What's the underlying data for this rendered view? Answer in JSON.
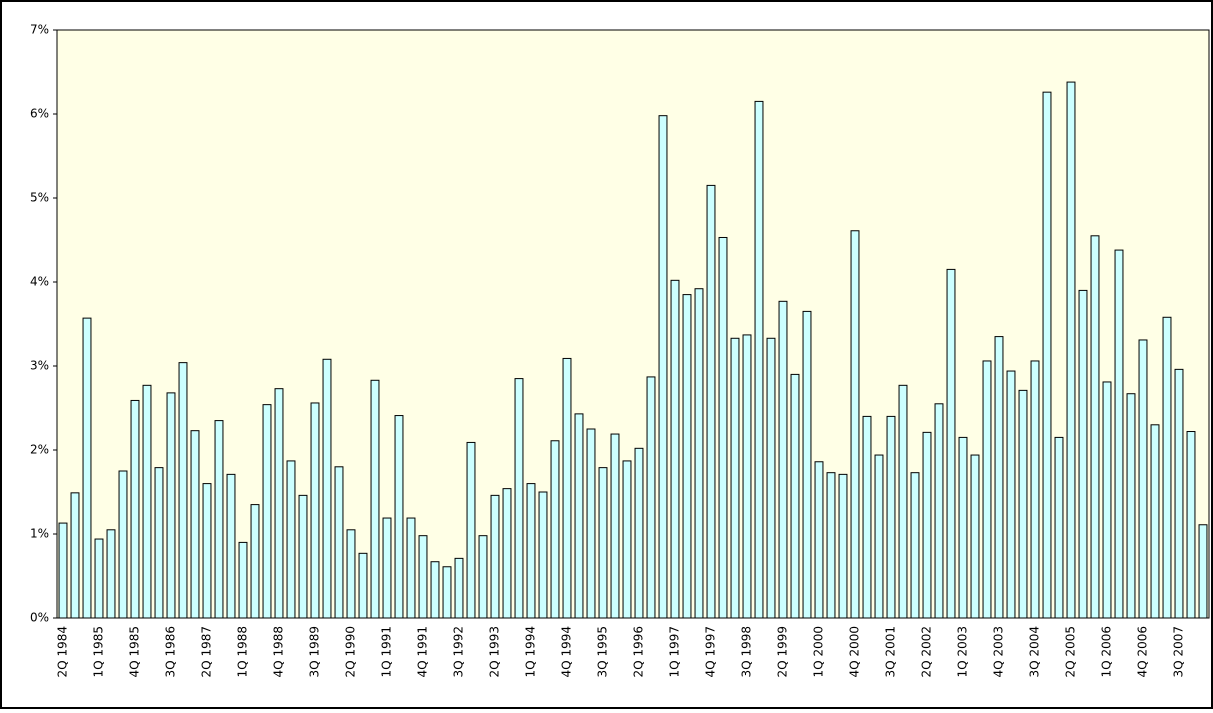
{
  "chart_data": {
    "type": "bar",
    "categories": [
      "2Q 1984",
      null,
      null,
      "1Q 1985",
      null,
      null,
      "4Q 1985",
      null,
      null,
      "3Q 1986",
      null,
      null,
      "2Q 1987",
      null,
      null,
      "1Q 1988",
      null,
      null,
      "4Q 1988",
      null,
      null,
      "3Q 1989",
      null,
      null,
      "2Q 1990",
      null,
      null,
      "1Q 1991",
      null,
      null,
      "4Q 1991",
      null,
      null,
      "3Q 1992",
      null,
      null,
      "2Q 1993",
      null,
      null,
      "1Q 1994",
      null,
      null,
      "4Q 1994",
      null,
      null,
      "3Q 1995",
      null,
      null,
      "2Q 1996",
      null,
      null,
      "1Q 1997",
      null,
      null,
      "4Q 1997",
      null,
      null,
      "3Q 1998",
      null,
      null,
      "2Q 1999",
      null,
      null,
      "1Q 2000",
      null,
      null,
      "4Q 2000",
      null,
      null,
      "3Q 2001",
      null,
      null,
      "2Q 2002",
      null,
      null,
      "1Q 2003",
      null,
      null,
      "4Q 2003",
      null,
      null,
      "3Q 2004",
      null,
      null,
      "2Q 2005",
      null,
      null,
      "1Q 2006",
      null,
      null,
      "4Q 2006",
      null,
      null,
      "3Q 2007",
      null,
      null
    ],
    "values": [
      1.13,
      1.49,
      3.57,
      0.94,
      1.05,
      1.75,
      2.59,
      2.77,
      1.79,
      2.68,
      3.04,
      2.23,
      1.6,
      2.35,
      1.71,
      0.9,
      1.35,
      2.54,
      2.73,
      1.87,
      1.46,
      2.56,
      3.08,
      1.8,
      1.05,
      0.77,
      2.83,
      1.19,
      2.41,
      1.19,
      0.98,
      0.67,
      0.61,
      0.71,
      2.09,
      0.98,
      1.46,
      1.54,
      2.85,
      1.6,
      1.5,
      2.11,
      3.09,
      2.43,
      2.25,
      1.79,
      2.19,
      1.87,
      2.02,
      2.87,
      5.98,
      4.02,
      3.85,
      3.92,
      5.15,
      4.53,
      3.33,
      3.37,
      6.15,
      3.33,
      3.77,
      2.9,
      3.65,
      1.86,
      1.73,
      1.71,
      4.61,
      2.4,
      1.94,
      2.4,
      2.77,
      1.73,
      2.21,
      2.55,
      4.15,
      2.15,
      1.94,
      3.06,
      3.35,
      2.94,
      2.71,
      3.06,
      6.26,
      2.15,
      6.38,
      3.9,
      4.55,
      2.81,
      4.38,
      2.67,
      3.31,
      2.3,
      3.58,
      2.96,
      2.22,
      1.11
    ],
    "color": "#ccffff",
    "ylim": [
      0,
      7
    ],
    "yticks": [
      {
        "value": 0,
        "label": "0%"
      },
      {
        "value": 1,
        "label": "1%"
      },
      {
        "value": 2,
        "label": "2%"
      },
      {
        "value": 3,
        "label": "3%"
      },
      {
        "value": 4,
        "label": "4%"
      },
      {
        "value": 5,
        "label": "5%"
      },
      {
        "value": 6,
        "label": "6%"
      },
      {
        "value": 7,
        "label": "7%"
      }
    ]
  }
}
